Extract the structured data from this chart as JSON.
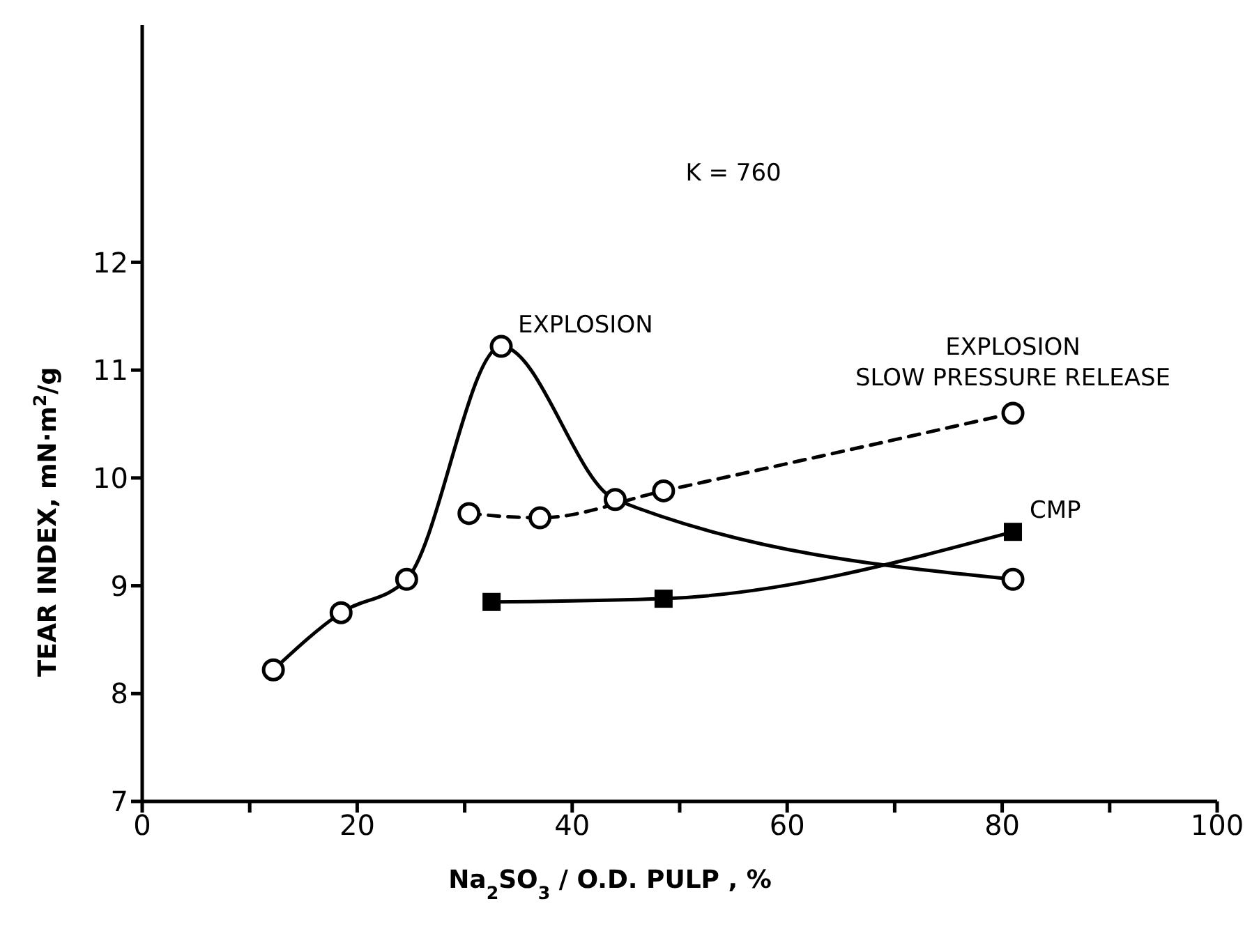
{
  "chart_data": {
    "type": "line",
    "xlabel": "Na$_{2}$SO$_{3}$ / O.D. PULP , %",
    "ylabel": "TEAR INDEX, mN·m$^{2}$/g",
    "xlim": [
      0,
      100
    ],
    "ylim": [
      7,
      14.2
    ],
    "xticks": [
      0,
      {
        "value": 10,
        "label": null
      },
      20,
      {
        "value": 30,
        "label": null
      },
      40,
      {
        "value": 50,
        "label": null
      },
      60,
      {
        "value": 70,
        "label": null
      },
      80,
      {
        "value": 90,
        "label": null
      },
      100
    ],
    "yticks": [
      7,
      8,
      9,
      10,
      11,
      12
    ],
    "grid": false,
    "legend": false,
    "series": [
      {
        "name": "EXPLOSION",
        "color": "#000000",
        "marker": "circle",
        "line_style": "solid",
        "x": [
          12.2,
          18.5,
          24.6,
          33.4,
          44,
          81
        ],
        "values": [
          8.22,
          8.75,
          9.06,
          11.22,
          9.8,
          9.06
        ]
      },
      {
        "name": "EXPLOSION SLOW PRESSURE RELEASE",
        "color": "#000000",
        "marker": "circle",
        "line_style": "dashed",
        "x": [
          30.4,
          37,
          48.5,
          81
        ],
        "values": [
          9.67,
          9.63,
          9.88,
          10.6
        ]
      },
      {
        "name": "CMP",
        "color": "#000000",
        "marker": "square",
        "line_style": "solid",
        "x": [
          32.5,
          48.5,
          81
        ],
        "values": [
          8.85,
          8.88,
          9.5
        ]
      }
    ],
    "annotations": [
      "K = 760"
    ]
  }
}
